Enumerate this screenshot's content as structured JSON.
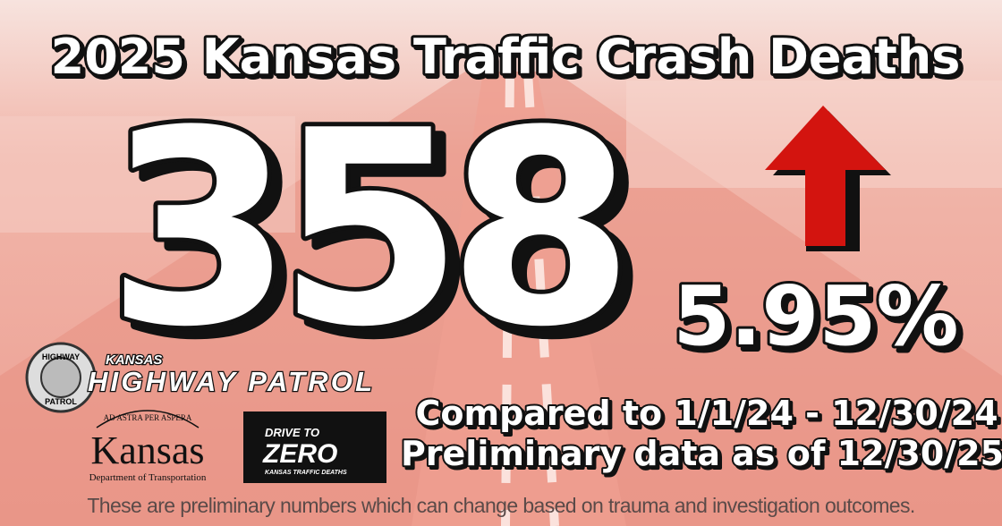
{
  "header": {
    "title": "2025 Kansas Traffic Crash Deaths"
  },
  "stats": {
    "deaths": "358",
    "change": "5.95%"
  },
  "comparison": {
    "compared": "Compared to 1/1/24 - 12/30/24",
    "preliminary": "Preliminary data as of 12/30/25"
  },
  "logos": {
    "badge_top": "HIGHWAY",
    "badge_bottom": "PATROL",
    "khp_small": "KANSAS",
    "khp_name": "HIGHWAY PATROL",
    "kdot_motto": "AD ASTRA PER ASPERA",
    "kdot_name": "Kansas",
    "kdot_sub": "Department of Transportation",
    "dtz_top": "DRIVE TO",
    "dtz_main": "ZERO",
    "dtz_sub": "KANSAS TRAFFIC DEATHS"
  },
  "footer": {
    "note": "These are preliminary numbers which can change based on trauma and investigation outcomes."
  }
}
